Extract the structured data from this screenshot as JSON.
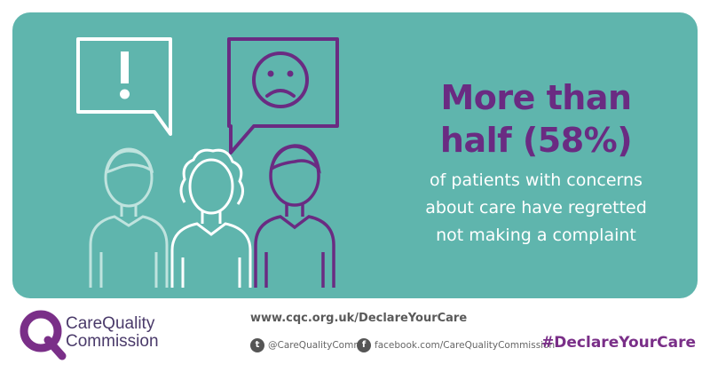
{
  "infographic": {
    "headline_line1": "More than",
    "headline_line2": "half (58%)",
    "body_line1": "of patients with concerns",
    "body_line2": "about care have regretted",
    "body_line3": "not making a complaint",
    "statistic_percent": 58
  },
  "footer": {
    "logo_line1": "CareQuality",
    "logo_line2": "Commission",
    "url": "www.cqc.org.uk/DeclareYourCare",
    "twitter_handle": "@CareQualityComm",
    "facebook_url": "facebook.com/CareQualityCommission",
    "hashtag": "#DeclareYourCare"
  },
  "colors": {
    "panel_teal": "#5fb5ad",
    "accent_purple": "#6a2b82",
    "outline_white": "#ffffff",
    "outline_light_teal": "#bfe3de"
  },
  "icons": [
    "exclamation-speech-bubble-icon",
    "sad-face-speech-bubble-icon",
    "person-icon",
    "twitter-icon",
    "facebook-icon",
    "cqc-logo-icon"
  ]
}
